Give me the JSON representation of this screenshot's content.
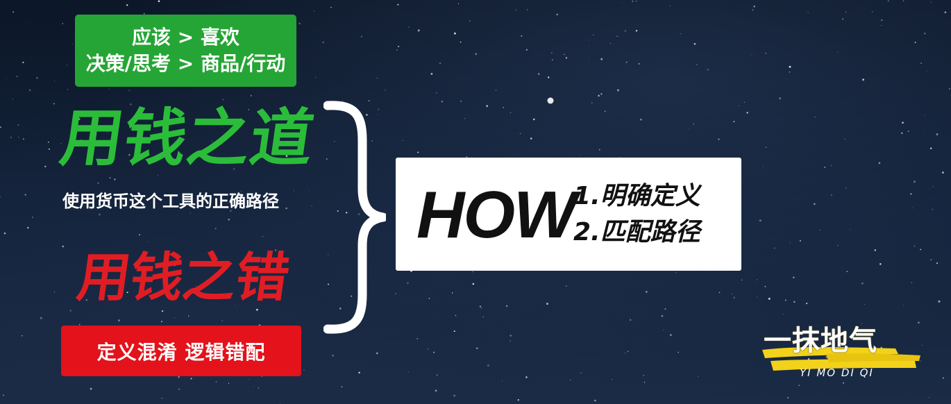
{
  "principle_box": {
    "line1": "应该 > 喜欢",
    "line2": "决策/思考 > 商品/行动"
  },
  "headline_green": "用钱之道",
  "subtitle": "使用货币这个工具的正确路径",
  "headline_red": "用钱之错",
  "error_box": "定义混淆  逻辑错配",
  "how_box": {
    "how": "HOW",
    "steps": [
      "1.明确定义",
      "2.匹配路径"
    ]
  },
  "logo": {
    "title": "一抹地气",
    "subtitle": "YI MO DI QI"
  },
  "colors": {
    "green_box": "#25a535",
    "green_text": "#2bbd3a",
    "red_text": "#e11d24",
    "red_box": "#e3121b",
    "logo_brush": "#f2d21a"
  }
}
